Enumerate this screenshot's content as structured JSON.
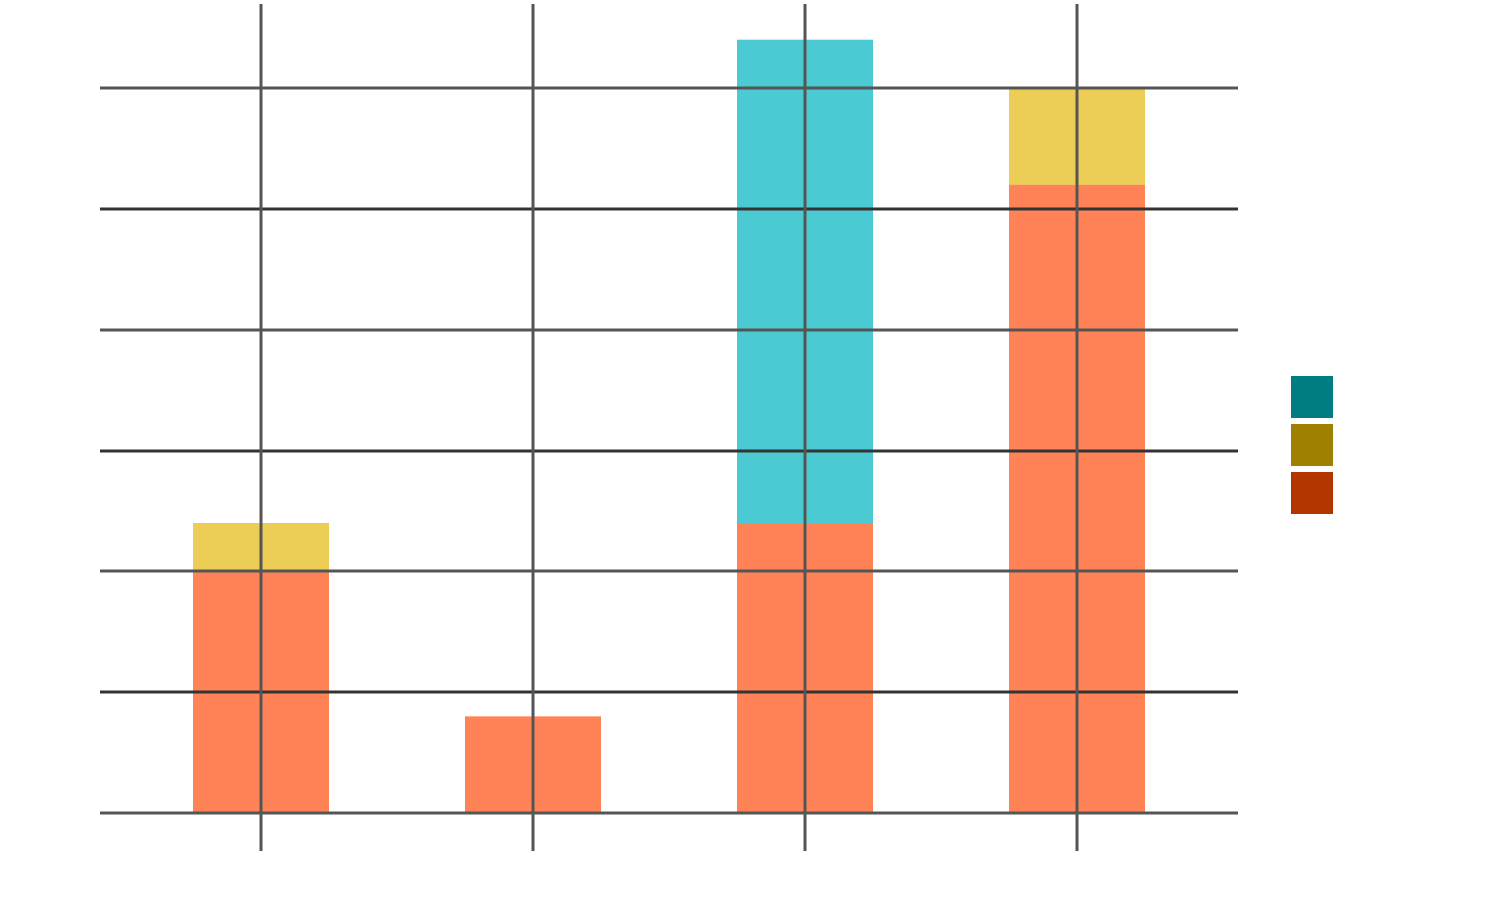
{
  "chart_data": {
    "type": "bar",
    "stacked": true,
    "title": "",
    "xlabel": "",
    "ylabel": "",
    "categories": [
      "",
      "",
      "",
      ""
    ],
    "ylim": [
      0,
      6.0
    ],
    "yticks": [
      0,
      1,
      2,
      3,
      4,
      5,
      6
    ],
    "grid": true,
    "legend_position": "right",
    "series": [
      {
        "color": "#FF5A1F",
        "fill_opacity": 0.75,
        "values": [
          2.0,
          0.8,
          2.4,
          5.2
        ]
      },
      {
        "color": "#E6BE1E",
        "fill_opacity": 0.75,
        "values": [
          0.4,
          0.0,
          0.0,
          0.8
        ]
      },
      {
        "color": "#00B4C0",
        "fill_opacity": 0.7,
        "values": [
          0.0,
          0.0,
          4.0,
          0.0
        ]
      }
    ],
    "legend_colors": [
      "#007D83",
      "#A08000",
      "#B33500"
    ]
  }
}
